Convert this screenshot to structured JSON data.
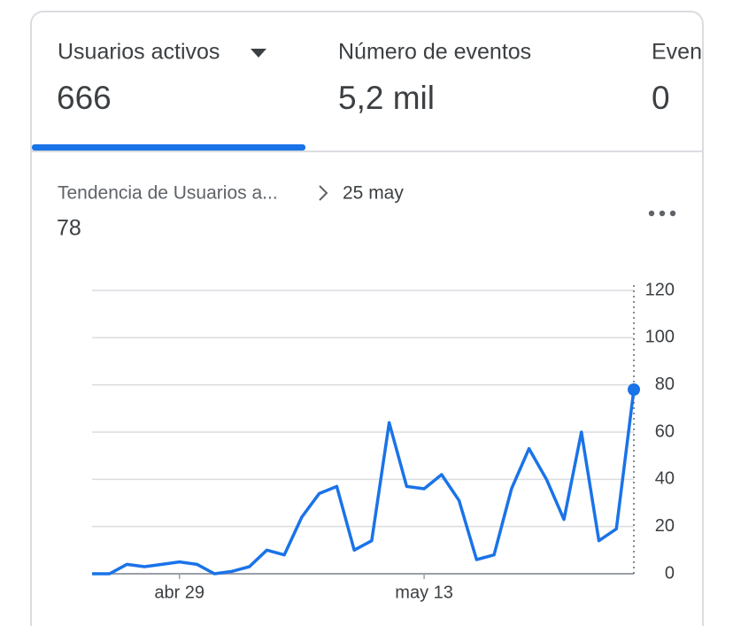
{
  "tabs": [
    {
      "label": "Usuarios activos",
      "value": "666"
    },
    {
      "label": "Número de eventos",
      "value": "5,2 mil"
    },
    {
      "label": "Even",
      "value": "0"
    }
  ],
  "chart_data": {
    "type": "line",
    "title": "Tendencia de Usuarios a...",
    "date_label": "25 may",
    "current_value": "78",
    "categories": [
      null,
      null,
      null,
      null,
      null,
      "abr 29",
      null,
      null,
      null,
      null,
      null,
      null,
      null,
      null,
      null,
      null,
      null,
      null,
      null,
      "may 13",
      null,
      null,
      null,
      null,
      null,
      null,
      null,
      null,
      null,
      null,
      null,
      null
    ],
    "series": [
      {
        "name": "Usuarios activos",
        "color": "#1a73e8",
        "values": [
          0,
          0,
          4,
          3,
          4,
          5,
          4,
          0,
          1,
          3,
          10,
          8,
          24,
          34,
          37,
          10,
          14,
          64,
          37,
          36,
          42,
          31,
          6,
          8,
          36,
          53,
          40,
          23,
          60,
          14,
          19,
          78
        ]
      }
    ],
    "ylim": [
      0,
      120
    ],
    "yticks": [
      0,
      20,
      40,
      60,
      80,
      100,
      120
    ],
    "grid": true
  }
}
